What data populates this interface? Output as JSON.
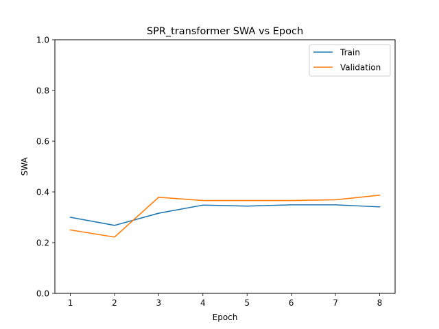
{
  "chart_data": {
    "type": "line",
    "title": "SPR_transformer SWA vs Epoch",
    "xlabel": "Epoch",
    "ylabel": "SWA",
    "x": [
      1,
      2,
      3,
      4,
      5,
      6,
      7,
      8
    ],
    "xlim": [
      0.65,
      8.35
    ],
    "ylim": [
      0.0,
      1.0
    ],
    "yticks": [
      "0.0",
      "0.2",
      "0.4",
      "0.6",
      "0.8",
      "1.0"
    ],
    "xticks": [
      "1",
      "2",
      "3",
      "4",
      "5",
      "6",
      "7",
      "8"
    ],
    "grid": false,
    "legend_position": "top-right",
    "series": [
      {
        "name": "Train",
        "color": "#1f77b4",
        "values": [
          0.3,
          0.268,
          0.316,
          0.348,
          0.344,
          0.349,
          0.349,
          0.341
        ]
      },
      {
        "name": "Validation",
        "color": "#ff7f0e",
        "values": [
          0.25,
          0.222,
          0.379,
          0.366,
          0.366,
          0.366,
          0.369,
          0.387
        ]
      }
    ]
  }
}
